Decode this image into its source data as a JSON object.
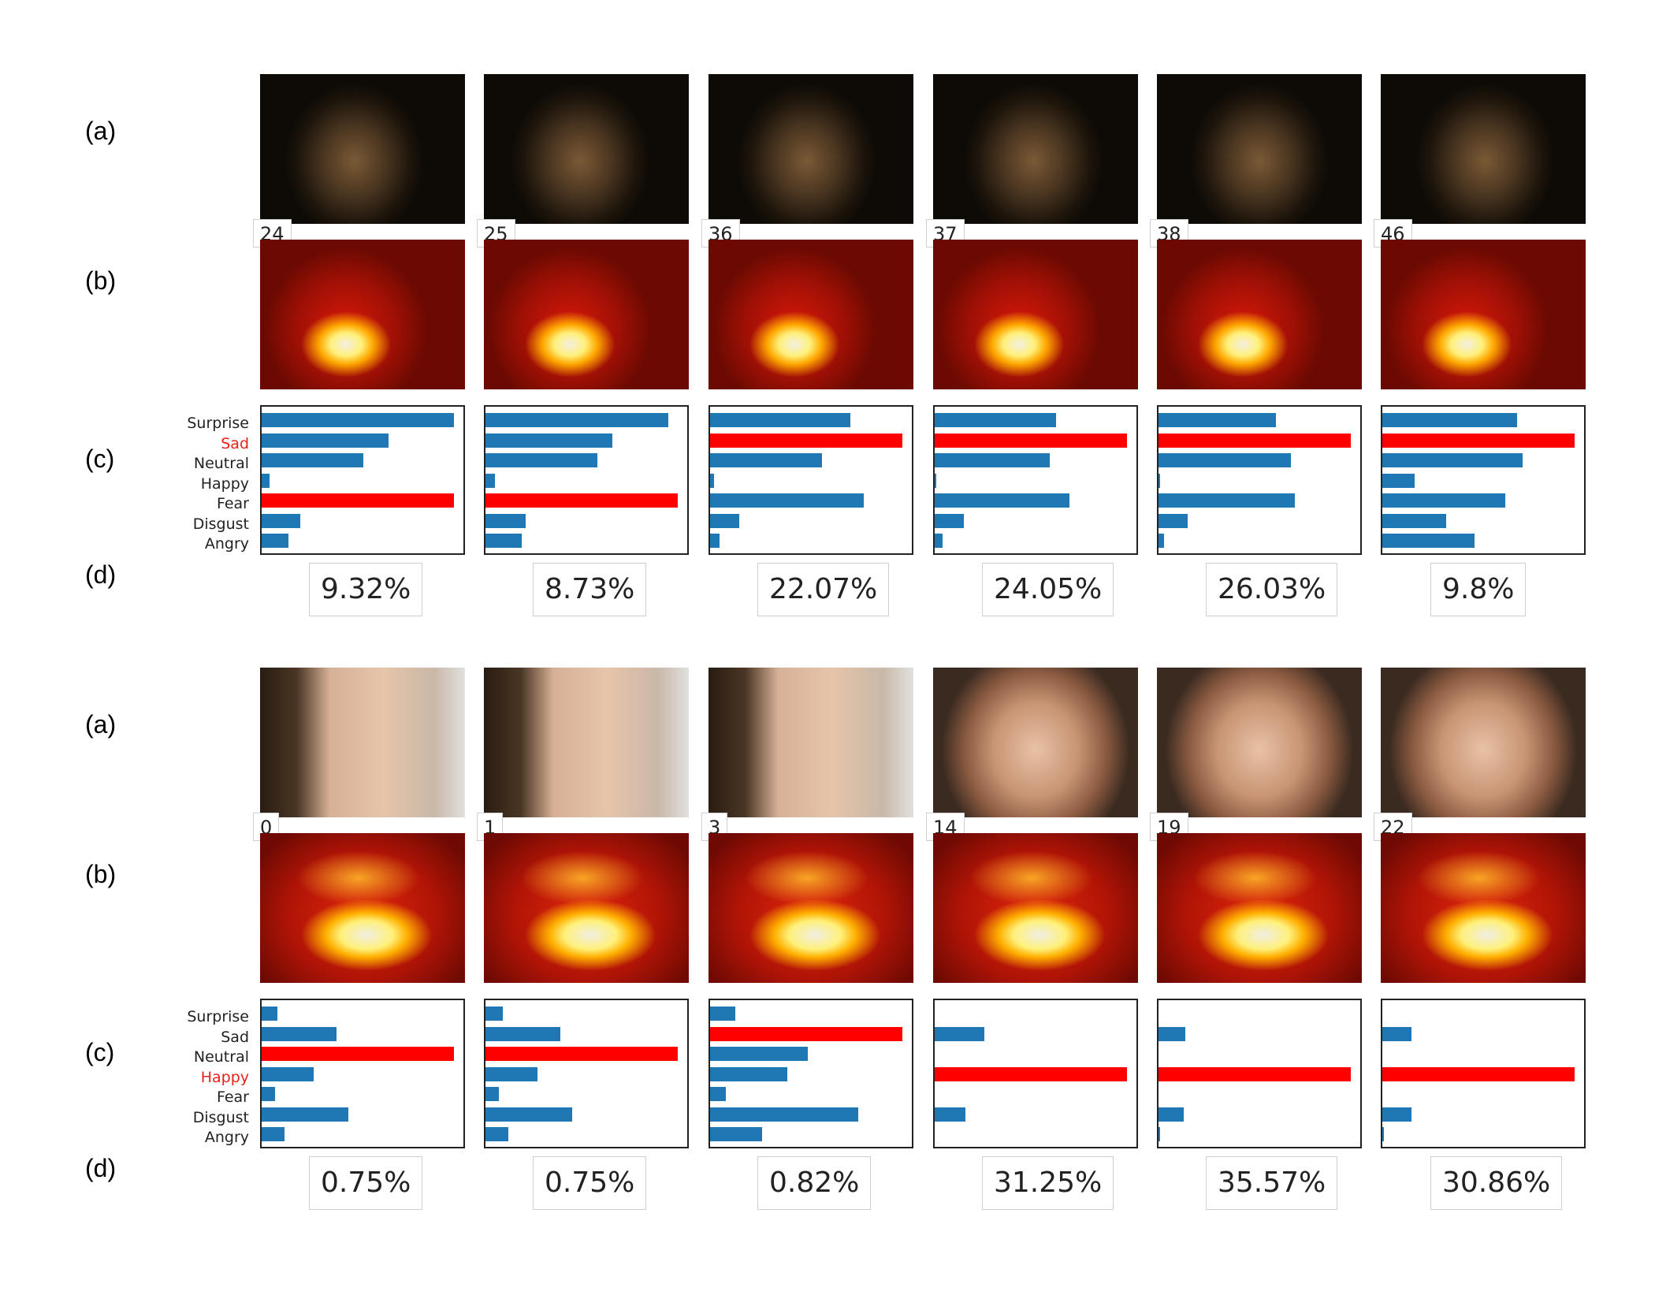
{
  "row_labels": {
    "a": "(a)",
    "b": "(b)",
    "c": "(c)",
    "d": "(d)"
  },
  "colors": {
    "bar": "#1f77b4",
    "highlight": "#ff0000",
    "label_highlight": "#e8211b"
  },
  "groups": [
    {
      "categories": [
        "Surprise",
        "Sad",
        "Neutral",
        "Happy",
        "Fear",
        "Disgust",
        "Angry"
      ],
      "label_highlight": "Sad",
      "panels": [
        {
          "frame_number": "24",
          "percentage": "9.32%",
          "bars": [
            1.0,
            0.66,
            0.53,
            0.04,
            1.0,
            0.2,
            0.14
          ],
          "red": [
            4
          ]
        },
        {
          "frame_number": "25",
          "percentage": "8.73%",
          "bars": [
            0.95,
            0.66,
            0.58,
            0.05,
            1.0,
            0.21,
            0.19
          ],
          "red": [
            4
          ]
        },
        {
          "frame_number": "36",
          "percentage": "22.07%",
          "bars": [
            0.73,
            1.0,
            0.58,
            0.02,
            0.8,
            0.15,
            0.05
          ],
          "red": [
            1
          ]
        },
        {
          "frame_number": "37",
          "percentage": "24.05%",
          "bars": [
            0.63,
            1.0,
            0.6,
            0.01,
            0.7,
            0.15,
            0.04
          ],
          "red": [
            1
          ]
        },
        {
          "frame_number": "38",
          "percentage": "26.03%",
          "bars": [
            0.61,
            1.0,
            0.69,
            0.01,
            0.71,
            0.15,
            0.03
          ],
          "red": [
            1
          ]
        },
        {
          "frame_number": "46",
          "percentage": "9.8%",
          "bars": [
            0.7,
            1.0,
            0.73,
            0.17,
            0.64,
            0.33,
            0.48
          ],
          "red": [
            1
          ]
        }
      ],
      "frame_style": "dark"
    },
    {
      "categories": [
        "Surprise",
        "Sad",
        "Neutral",
        "Happy",
        "Fear",
        "Disgust",
        "Angry"
      ],
      "label_highlight": "Happy",
      "panels": [
        {
          "frame_number": "0",
          "percentage": "0.75%",
          "bars": [
            0.08,
            0.39,
            1.0,
            0.27,
            0.07,
            0.45,
            0.12
          ],
          "red": [
            2
          ]
        },
        {
          "frame_number": "1",
          "percentage": "0.75%",
          "bars": [
            0.09,
            0.39,
            1.0,
            0.27,
            0.07,
            0.45,
            0.12
          ],
          "red": [
            2
          ]
        },
        {
          "frame_number": "3",
          "percentage": "0.82%",
          "bars": [
            0.13,
            1.0,
            0.51,
            0.4,
            0.08,
            0.77,
            0.27
          ],
          "red": [
            1
          ]
        },
        {
          "frame_number": "14",
          "percentage": "31.25%",
          "bars": [
            0.0,
            0.26,
            0.0,
            1.0,
            0.0,
            0.16,
            0.0
          ],
          "red": [
            3
          ]
        },
        {
          "frame_number": "19",
          "percentage": "35.57%",
          "bars": [
            0.0,
            0.14,
            0.0,
            1.0,
            0.0,
            0.13,
            0.01
          ],
          "red": [
            3
          ]
        },
        {
          "frame_number": "22",
          "percentage": "30.86%",
          "bars": [
            0.0,
            0.15,
            0.0,
            1.0,
            0.0,
            0.15,
            0.01
          ],
          "red": [
            3
          ]
        }
      ],
      "frame_style": "light"
    }
  ]
}
